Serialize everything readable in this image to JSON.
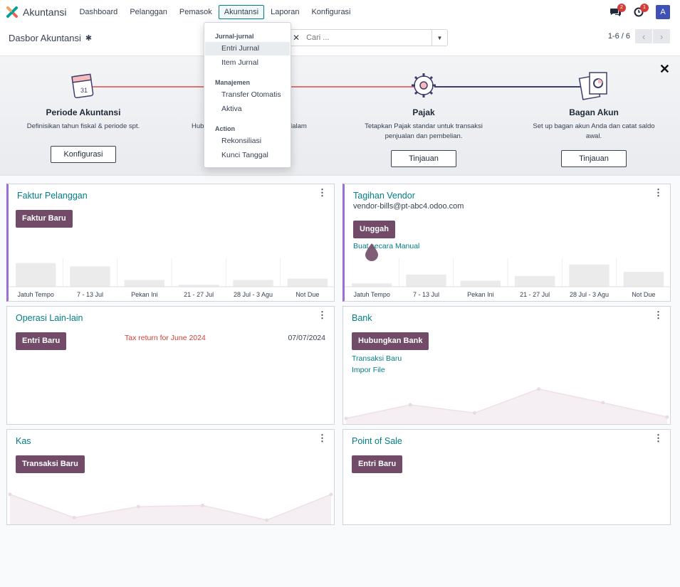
{
  "app": {
    "name": "Akuntansi"
  },
  "menu": [
    "Dashboard",
    "Pelanggan",
    "Pemasok",
    "Akuntansi",
    "Laporan",
    "Konfigurasi"
  ],
  "systray": {
    "messages_count": "2",
    "activities_count": "1",
    "avatar_letter": "A"
  },
  "control_panel": {
    "title": "Dasbor Akuntansi",
    "search_placeholder": "Cari ...",
    "pager": "1-6 / 6"
  },
  "dropdown": {
    "sections": [
      {
        "header": "Jurnal-jurnal",
        "items": [
          "Entri Jurnal",
          "Item Jurnal"
        ]
      },
      {
        "header": "Manajemen",
        "items": [
          "Transfer Otomatis",
          "Aktiva"
        ]
      },
      {
        "header": "Action",
        "items": [
          "Rekonsiliasi",
          "Kunci Tanggal"
        ]
      }
    ]
  },
  "onboarding": {
    "steps": [
      {
        "title": "Periode Akuntansi",
        "desc": "Definisikan tahun fiskal & periode spt.",
        "button": "Konfigurasi"
      },
      {
        "title": "",
        "desc_left": "Hub",
        "desc_right": "a dalam",
        "button": ""
      },
      {
        "title": "Pajak",
        "desc": "Tetapkan Pajak standar untuk transaksi penjualan dan pembelian.",
        "button": "Tinjauan"
      },
      {
        "title": "Bagan Akun",
        "desc": "Set up bagan akun Anda dan catat saldo awal.",
        "button": "Tinjauan"
      }
    ]
  },
  "cards": {
    "faktur": {
      "title": "Faktur Pelanggan",
      "button": "Faktur Baru",
      "chart_data": {
        "type": "bar",
        "categories": [
          "Jatuh Tempo",
          "7 - 13 Jul",
          "Pekan Ini",
          "21 - 27 Jul",
          "28 Jul - 3 Agu",
          "Not Due"
        ],
        "values": [
          35,
          30,
          10,
          3,
          10,
          12
        ],
        "ylim": [
          0,
          40
        ]
      }
    },
    "vendor": {
      "title": "Tagihan Vendor",
      "email": "vendor-bills@pt-abc4.odoo.com",
      "button": "Unggah",
      "link": "Buat secara Manual",
      "chart_data": {
        "type": "bar",
        "categories": [
          "Jatuh Tempo",
          "7 - 13 Jul",
          "Pekan Ini",
          "21 - 27 Jul",
          "28 Jul - 3 Agu",
          "Not Due"
        ],
        "values": [
          5,
          18,
          9,
          16,
          33,
          22
        ],
        "ylim": [
          0,
          40
        ]
      }
    },
    "operasi": {
      "title": "Operasi Lain-lain",
      "button": "Entri Baru",
      "entry_label": "Tax return for June 2024",
      "entry_date": "07/07/2024"
    },
    "bank": {
      "title": "Bank",
      "button": "Hubungkan Bank",
      "links": [
        "Transaksi Baru",
        "Impor File"
      ],
      "chart_data": {
        "type": "area",
        "x": [
          1,
          2,
          3,
          4,
          5,
          6
        ],
        "values": [
          2,
          22,
          10,
          45,
          25,
          4
        ],
        "ylim": [
          0,
          50
        ]
      }
    },
    "kas": {
      "title": "Kas",
      "button": "Transaksi Baru",
      "chart_data": {
        "type": "area",
        "x": [
          1,
          2,
          3,
          4,
          5,
          6
        ],
        "values": [
          42,
          4,
          22,
          24,
          0,
          42
        ],
        "ylim": [
          0,
          50
        ]
      }
    },
    "pos": {
      "title": "Point of Sale",
      "button": "Entri Baru"
    }
  },
  "colors": {
    "primary": "#714b67",
    "link": "#017e84",
    "accent_border": "#9b6fd7",
    "badge": "#d23f3a"
  }
}
